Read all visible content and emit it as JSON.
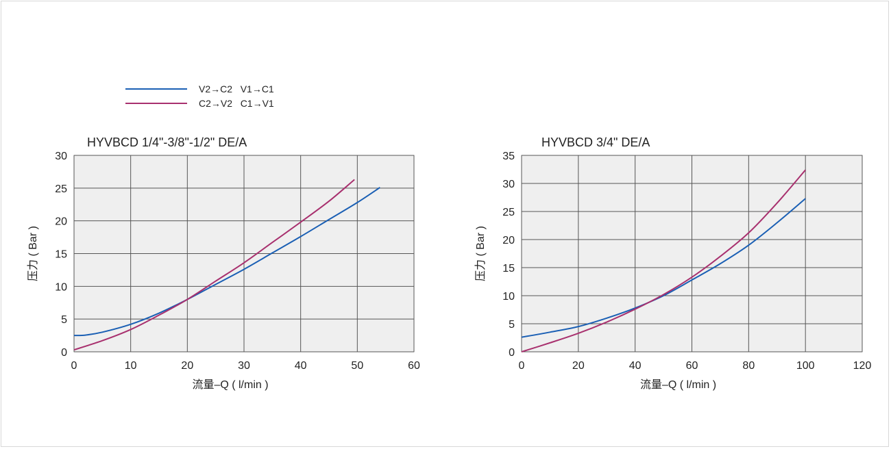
{
  "legend": [
    {
      "label": "V2→C2   V1→C1",
      "color": "#1a5fb4"
    },
    {
      "label": "C2→V2   C1→V1",
      "color": "#a8306e"
    }
  ],
  "chart_data": [
    {
      "type": "line",
      "title": "HYVBCD 1/4\"-3/8\"-1/2\" DE/A",
      "xlabel": "流量–Q ( l/min )",
      "ylabel": "压力 ( Bar )",
      "xlim": [
        0,
        60
      ],
      "ylim": [
        0,
        30
      ],
      "xticks": [
        0,
        10,
        20,
        30,
        40,
        50,
        60
      ],
      "yticks": [
        0,
        5,
        10,
        15,
        20,
        25,
        30
      ],
      "grid": true,
      "plot_bg": "#efefef",
      "series": [
        {
          "name": "V2→C2 V1→C1",
          "color": "#1a5fb4",
          "x": [
            0,
            2,
            5,
            10,
            15,
            20,
            25,
            30,
            35,
            40,
            45,
            50,
            54
          ],
          "y": [
            2.5,
            2.55,
            3.0,
            4.2,
            5.9,
            8.0,
            10.3,
            12.6,
            15.1,
            17.6,
            20.2,
            22.8,
            25.1
          ]
        },
        {
          "name": "C2→V2 C1→V1",
          "color": "#a8306e",
          "x": [
            0,
            5,
            10,
            15,
            20,
            25,
            30,
            35,
            40,
            45,
            49.5
          ],
          "y": [
            0.3,
            1.7,
            3.4,
            5.6,
            8.0,
            10.8,
            13.6,
            16.7,
            19.8,
            23.0,
            26.3
          ]
        }
      ]
    },
    {
      "type": "line",
      "title": "HYVBCD 3/4\" DE/A",
      "xlabel": "流量–Q ( l/min )",
      "ylabel": "压力 ( Bar )",
      "xlim": [
        0,
        120
      ],
      "ylim": [
        0,
        35
      ],
      "xticks": [
        0,
        20,
        40,
        60,
        80,
        100,
        120
      ],
      "yticks": [
        0,
        5,
        10,
        15,
        20,
        25,
        30,
        35
      ],
      "grid": true,
      "plot_bg": "#efefef",
      "series": [
        {
          "name": "V2→C2 V1→C1",
          "color": "#1a5fb4",
          "x": [
            0,
            10,
            20,
            30,
            40,
            50,
            60,
            70,
            80,
            90,
            100
          ],
          "y": [
            2.6,
            3.5,
            4.5,
            6.0,
            7.8,
            10.0,
            12.8,
            15.7,
            19.0,
            23.0,
            27.3
          ]
        },
        {
          "name": "C2→V2 C1→V1",
          "color": "#a8306e",
          "x": [
            0,
            10,
            20,
            30,
            40,
            50,
            60,
            70,
            80,
            90,
            100
          ],
          "y": [
            0,
            1.6,
            3.3,
            5.3,
            7.6,
            10.2,
            13.3,
            17.0,
            21.2,
            26.5,
            32.4
          ]
        }
      ]
    }
  ]
}
